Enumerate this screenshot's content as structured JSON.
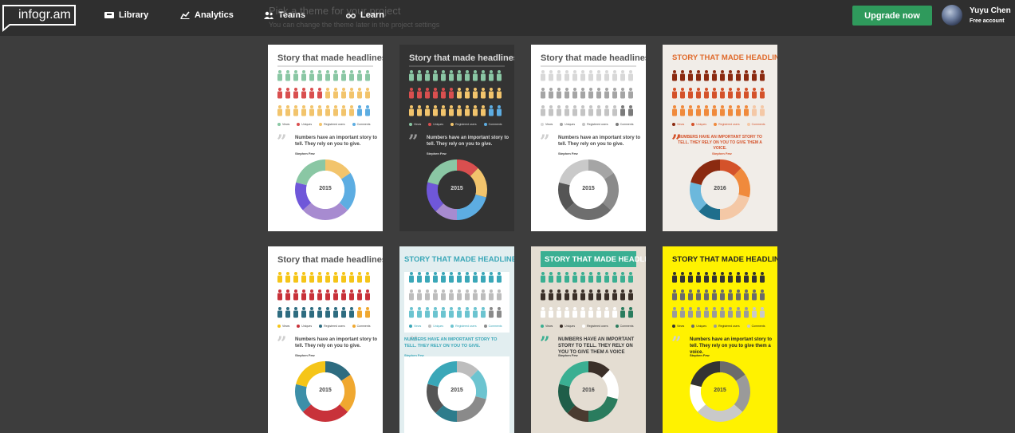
{
  "header": {
    "logo": "infogr.am",
    "nav": [
      {
        "label": "Library",
        "icon": "library-icon"
      },
      {
        "label": "Analytics",
        "icon": "analytics-icon"
      },
      {
        "label": "Teams",
        "icon": "teams-icon"
      },
      {
        "label": "Learn",
        "icon": "learn-icon"
      }
    ],
    "ghost_title": "Pick a theme for your project",
    "ghost_subtitle": "You can change the theme later in the project settings",
    "upgrade_label": "Upgrade now",
    "user_name": "Yuyu Chen",
    "user_account": "Free account"
  },
  "themes": [
    {
      "title": "Story that made headlines",
      "quote": "Numbers have an important story to tell. They rely on you to give.",
      "author": "Stephen Few",
      "year": "2015",
      "legend": [
        "Views",
        "Uniques",
        "Registered users",
        "Comments"
      ],
      "colors": {
        "bg": "#ffffff",
        "title": "#555555",
        "text": "#444444",
        "rows": [
          "#8ac7a4",
          "#d94f4f",
          "#f2c46c"
        ],
        "accent": "#5dade2",
        "donut": [
          "#f2c46c",
          "#5dade2",
          "#a78bd0",
          "#6f57d9",
          "#8ac7a4"
        ],
        "hole": "#ffffff"
      }
    },
    {
      "title": "Story that made headlines",
      "quote": "Numbers have an important story to tell. They rely on you to give.",
      "author": "Stephen Few",
      "year": "2015",
      "legend": [
        "Views",
        "Uniques",
        "Registered users",
        "Comments"
      ],
      "colors": {
        "bg": "#333333",
        "title": "#dddddd",
        "text": "#dddddd",
        "rows": [
          "#8ac7a4",
          "#d94f4f",
          "#f2c46c"
        ],
        "accent": "#5dade2",
        "donut": [
          "#d94f4f",
          "#f2c46c",
          "#5dade2",
          "#a78bd0",
          "#6f57d9",
          "#8ac7a4"
        ],
        "hole": "#333333"
      }
    },
    {
      "title": "Story that made headlines",
      "quote": "Numbers have an important story to tell. They rely on you to give.",
      "author": "Stephen Few",
      "year": "2015",
      "legend": [
        "Views",
        "Uniques",
        "Registered users",
        "Comments"
      ],
      "colors": {
        "bg": "#ffffff",
        "title": "#555555",
        "text": "#444444",
        "rows": [
          "#d8d8d8",
          "#a5a5a5",
          "#c4c4c4"
        ],
        "accent": "#7b7b7b",
        "donut": [
          "#a5a5a5",
          "#8a8a8a",
          "#6e6e6e",
          "#555555",
          "#c9c9c9"
        ],
        "hole": "#ffffff"
      }
    },
    {
      "title": "STORY THAT MADE HEADLINES",
      "quote": "NUMBERS HAVE AN IMPORTANT STORY TO TELL. THEY RELY ON YOU TO GIVE THEM A VOICE.",
      "author": "Stephen Few",
      "year": "2016",
      "legend": [
        "Views",
        "Uniques",
        "Registered users",
        "Comments"
      ],
      "colors": {
        "bg": "#f1ede8",
        "title": "#e06a2b",
        "text": "#d4522a",
        "rows": [
          "#8b2a10",
          "#d4522a",
          "#f08a3c"
        ],
        "accent": "#f4c8a6",
        "donut": [
          "#d4522a",
          "#f08a3c",
          "#f4c8a6",
          "#1f6e8c",
          "#6cb8dc",
          "#8b2a10"
        ],
        "hole": "#f1ede8"
      }
    },
    {
      "title": "Story that made headlines",
      "quote": "Numbers have an important story to tell. They rely on you to give.",
      "author": "Stephen Few",
      "year": "2015",
      "legend": [
        "Views",
        "Uniques",
        "Registered users",
        "Comments"
      ],
      "colors": {
        "bg": "#ffffff",
        "title": "#555555",
        "text": "#444444",
        "rows": [
          "#f5c518",
          "#c8323a",
          "#2e6c80"
        ],
        "accent": "#f0a830",
        "donut": [
          "#2e6c80",
          "#f0a830",
          "#c8323a",
          "#3d8fa8",
          "#f5c518"
        ],
        "hole": "#ffffff"
      }
    },
    {
      "title": "STORY THAT MADE HEADLINES",
      "quote": "NUMBERS HAVE AN IMPORTANT STORY TO TELL. THEY RELY ON YOU TO GIVE.",
      "author": "Stephen Few",
      "year": "2015",
      "legend": [
        "Views",
        "Uniques",
        "Registered users",
        "Comments"
      ],
      "colors": {
        "bg": "#e2eef0",
        "title": "#3aa7b8",
        "text": "#3aa7b8",
        "rows": [
          "#3aa7b8",
          "#bdbdbd",
          "#6cc4d0"
        ],
        "accent": "#8a8a8a",
        "donut": [
          "#bdbdbd",
          "#6cc4d0",
          "#8a8a8a",
          "#2d7c8c",
          "#555555",
          "#3aa7b8"
        ],
        "hole": "#ffffff"
      }
    },
    {
      "title": "STORY THAT MADE HEADLINES",
      "quote": "NUMBERS HAVE AN IMPORTANT STORY TO TELL. THEY RELY ON YOU TO GIVE THEM A VOICE",
      "author": "Stephen Few",
      "year": "2016",
      "legend": [
        "Views",
        "Uniques",
        "Registered users",
        "Comments"
      ],
      "colors": {
        "bg": "#e4ddd2",
        "title": "#ffffff",
        "text": "#333333",
        "rows": [
          "#3aaf92",
          "#3a2f28",
          "#ffffff"
        ],
        "accent": "#2a7c5e",
        "donut": [
          "#3a2f28",
          "#ffffff",
          "#2a7c5e",
          "#4a3b30",
          "#1f5e49",
          "#3aaf92"
        ],
        "hole": "#e4ddd2"
      }
    },
    {
      "title": "STORY THAT MADE HEADLINES",
      "quote": "Numbers have an important story to tell. They rely on you to give them a voice.",
      "author": "Stephen Few",
      "year": "2015",
      "legend": [
        "Views",
        "Uniques",
        "Registered users",
        "Comments"
      ],
      "colors": {
        "bg": "#fff200",
        "title": "#222222",
        "text": "#222222",
        "rows": [
          "#333333",
          "#6b6b6b",
          "#9a9a9a"
        ],
        "accent": "#c9c9c9",
        "donut": [
          "#6b6b6b",
          "#9a9a9a",
          "#c9c9c9",
          "#ffffff",
          "#333333"
        ],
        "hole": "#fff200"
      }
    }
  ]
}
